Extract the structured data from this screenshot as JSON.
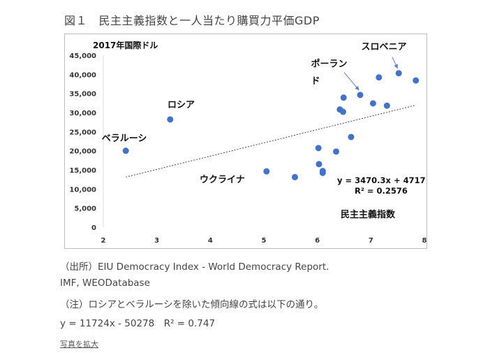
{
  "figure_title": "図１　民主主義指数と一人当たり購買力平価GDP",
  "source_note": "（出所）EIU Democracy Index - World Democracy Report.",
  "source_note2": "IMF, WEODatabase",
  "note": "（注）ロシアとベラルーシを除いた傾向線の式は以下の通り。",
  "formula": "y = 11724x - 50278　R² = 0.747",
  "enlarge_link": "写真を拡大",
  "colors": {
    "marker": "#4472c4",
    "trendline": "#444444",
    "axis": "#d9d9d9"
  },
  "chart_data": {
    "type": "scatter",
    "ylabel": "2017年国際ドル",
    "xlabel": "民主主義指数",
    "xlim": [
      2,
      8
    ],
    "ylim": [
      0,
      45000
    ],
    "x_ticks": [
      "2",
      "3",
      "4",
      "5",
      "6",
      "7",
      "8"
    ],
    "y_ticks": [
      "0",
      "5,000",
      "10,000",
      "15,000",
      "20,000",
      "25,000",
      "30,000",
      "35,000",
      "40,000",
      "45,000"
    ],
    "points": [
      {
        "x": 2.42,
        "y": 20000
      },
      {
        "x": 3.25,
        "y": 28200
      },
      {
        "x": 5.05,
        "y": 14600
      },
      {
        "x": 5.58,
        "y": 13100
      },
      {
        "x": 6.02,
        "y": 20700
      },
      {
        "x": 6.03,
        "y": 16500
      },
      {
        "x": 6.1,
        "y": 14700
      },
      {
        "x": 6.1,
        "y": 14200
      },
      {
        "x": 6.35,
        "y": 19800
      },
      {
        "x": 6.42,
        "y": 30800
      },
      {
        "x": 6.48,
        "y": 30200
      },
      {
        "x": 6.49,
        "y": 33900
      },
      {
        "x": 6.63,
        "y": 23600
      },
      {
        "x": 6.8,
        "y": 34600
      },
      {
        "x": 7.04,
        "y": 32400
      },
      {
        "x": 7.15,
        "y": 39200
      },
      {
        "x": 7.3,
        "y": 31800
      },
      {
        "x": 7.52,
        "y": 40300
      },
      {
        "x": 7.84,
        "y": 38400
      }
    ],
    "trendline": {
      "x": [
        2.42,
        7.84
      ],
      "y": [
        13115,
        31924
      ],
      "equation": "y = 3470.3x + 4717",
      "r2": "R² = 0.2576"
    },
    "annotations": [
      {
        "text": "ロシア",
        "x": 3.2,
        "y": 31300
      },
      {
        "text": "ベラルーシ",
        "x": 1.97,
        "y": 22500
      },
      {
        "text": "ウクライナ",
        "x": 3.8,
        "y": 11700
      },
      {
        "text": "ポーラン",
        "x": 5.88,
        "y": 42000
      },
      {
        "text": "ド",
        "x": 5.88,
        "y": 37500
      },
      {
        "text": "スロベニア",
        "x": 6.82,
        "y": 46500
      }
    ]
  }
}
